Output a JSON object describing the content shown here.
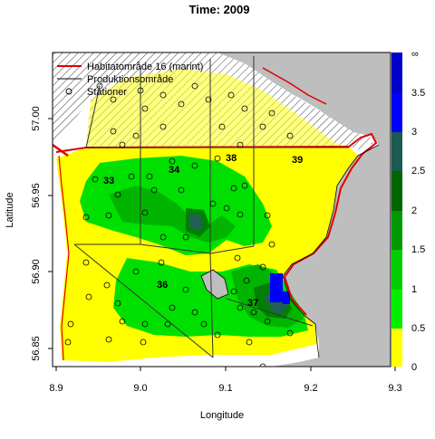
{
  "title": "Time: 2009",
  "axes": {
    "xlabel": "Longitude",
    "ylabel": "Latitude",
    "x_ticks": [
      "8.9",
      "9.0",
      "9.1",
      "9.2",
      "9.3"
    ],
    "y_ticks": [
      "56.85",
      "56.90",
      "56.95",
      "57.00"
    ]
  },
  "legend": {
    "items": [
      {
        "label": "Habitatområde 16 (marint)",
        "color": "#e00000",
        "kind": "line"
      },
      {
        "label": "Produktionsområde",
        "color": "#333333",
        "kind": "line"
      },
      {
        "label": "Stationer",
        "color": "#000000",
        "kind": "circle"
      }
    ]
  },
  "colorbar": {
    "labels": [
      "0",
      "0.5",
      "1",
      "1.5",
      "2",
      "2.5",
      "3",
      "3.5",
      "∞"
    ],
    "colors": [
      "#ffff00",
      "#00ee00",
      "#00cc00",
      "#009900",
      "#006600",
      "#1a5a50",
      "#0000ff",
      "#0000cc"
    ]
  },
  "zones": [
    "33",
    "34",
    "38",
    "39",
    "36",
    "37"
  ],
  "colors": {
    "land": "#bebebe",
    "low": "#ffff00",
    "green_light": "#00e000",
    "green_mid": "#00b400",
    "green_dark": "#008000",
    "teal": "#1f5f55",
    "blue": "#0000ff"
  }
}
